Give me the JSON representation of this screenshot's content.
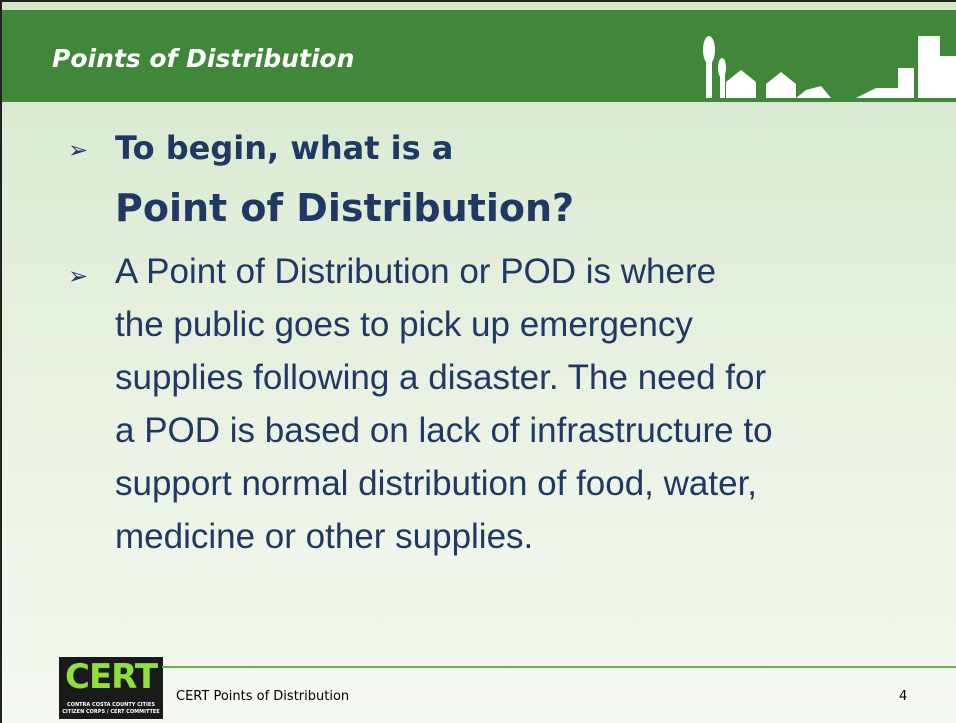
{
  "header": {
    "title": "Points of Distribution"
  },
  "bullets": [
    {
      "lines": [
        "To begin, what is a",
        "Point of Distribution?"
      ]
    },
    {
      "lines": [
        "A Point of Distribution or POD is where",
        "the public goes to pick up emergency",
        "supplies following a disaster. The need for",
        "a POD is based on lack of infrastructure to",
        "support normal distribution of food, water,",
        "medicine or other supplies."
      ]
    }
  ],
  "logo": {
    "mark": "CERT",
    "line1": "CONTRA COSTA COUNTY CITIES",
    "line2": "CITIZEN CORPS / CERT COMMITTEE"
  },
  "footer": {
    "text": "CERT Points of Distribution",
    "page": "4"
  }
}
